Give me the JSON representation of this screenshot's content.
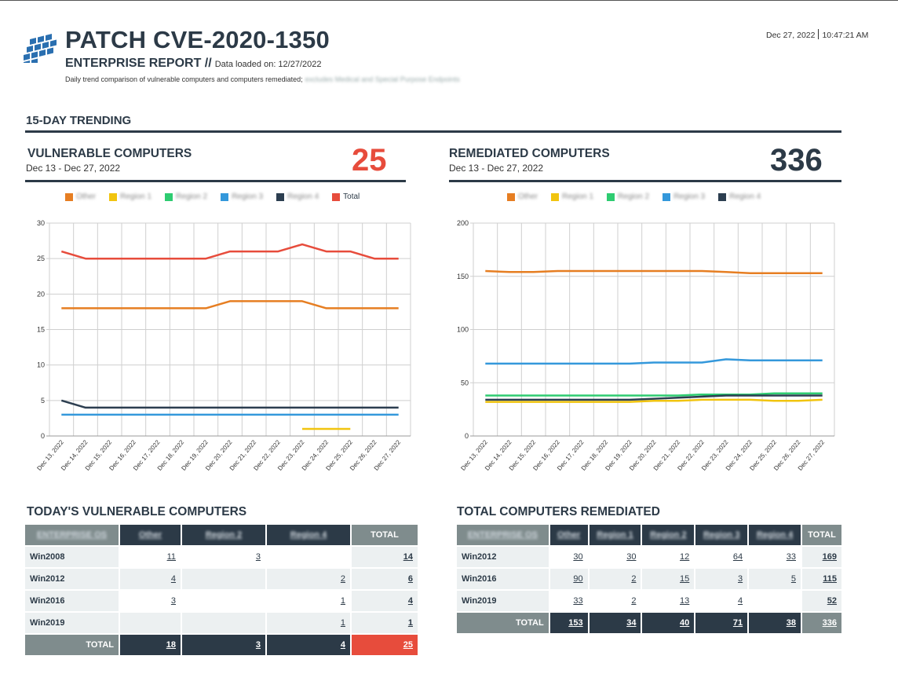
{
  "header": {
    "title": "PATCH CVE-2020-1350",
    "subtitle": "ENTERPRISE REPORT //",
    "data_loaded": "Data loaded on: 12/27/2022",
    "description": "Daily trend comparison of vulnerable computers and computers remediated;",
    "description_blurred": "excludes Medical and Special Purpose Endpoints",
    "date": "Dec 27, 2022",
    "time": "10:47:21 AM"
  },
  "section_title": "15-DAY TRENDING",
  "vulnerable_panel": {
    "title": "VULNERABLE COMPUTERS",
    "range": "Dec 13 - Dec 27, 2022",
    "count": "25"
  },
  "remediated_panel": {
    "title": "REMEDIATED COMPUTERS",
    "range": "Dec 13 - Dec 27, 2022",
    "count": "336"
  },
  "colors": {
    "other": "#e67e22",
    "region1": "#f1c40f",
    "region2": "#2ecc71",
    "region3": "#3498db",
    "region4": "#2c3e50",
    "total": "#e74c3c",
    "dark": "#2c3a47",
    "gray": "#7f8c8d"
  },
  "chart_data": [
    {
      "type": "line",
      "title": "VULNERABLE COMPUTERS",
      "categories": [
        "Dec 13, 2022",
        "Dec 14, 2022",
        "Dec 15, 2022",
        "Dec 16, 2022",
        "Dec 17, 2022",
        "Dec 18, 2022",
        "Dec 19, 2022",
        "Dec 20, 2022",
        "Dec 21, 2022",
        "Dec 22, 2022",
        "Dec 23, 2022",
        "Dec 24, 2022",
        "Dec 25, 2022",
        "Dec 26, 2022",
        "Dec 27, 2022"
      ],
      "ylim": [
        0,
        30
      ],
      "yticks": [
        0,
        5,
        10,
        15,
        20,
        25,
        30
      ],
      "legend": [
        "Other",
        "Region 1",
        "Region 2",
        "Region 3",
        "Region 4",
        "Total"
      ],
      "series": [
        {
          "name": "Other",
          "color": "#e67e22",
          "values": [
            18,
            18,
            18,
            18,
            18,
            18,
            18,
            19,
            19,
            19,
            19,
            18,
            18,
            18,
            18
          ]
        },
        {
          "name": "Region 1",
          "color": "#f1c40f",
          "values": [
            null,
            null,
            null,
            null,
            null,
            null,
            null,
            null,
            null,
            null,
            1,
            1,
            1,
            null,
            null
          ]
        },
        {
          "name": "Region 3",
          "color": "#3498db",
          "values": [
            3,
            3,
            3,
            3,
            3,
            3,
            3,
            3,
            3,
            3,
            3,
            3,
            3,
            3,
            3
          ]
        },
        {
          "name": "Region 4",
          "color": "#2c3e50",
          "values": [
            5,
            4,
            4,
            4,
            4,
            4,
            4,
            4,
            4,
            4,
            4,
            4,
            4,
            4,
            4
          ]
        },
        {
          "name": "Total",
          "color": "#e74c3c",
          "values": [
            26,
            25,
            25,
            25,
            25,
            25,
            25,
            26,
            26,
            26,
            27,
            26,
            26,
            25,
            25
          ]
        }
      ]
    },
    {
      "type": "line",
      "title": "REMEDIATED COMPUTERS",
      "categories": [
        "Dec 13, 2022",
        "Dec 14, 2022",
        "Dec 15, 2022",
        "Dec 16, 2022",
        "Dec 17, 2022",
        "Dec 18, 2022",
        "Dec 19, 2022",
        "Dec 20, 2022",
        "Dec 21, 2022",
        "Dec 22, 2022",
        "Dec 23, 2022",
        "Dec 24, 2022",
        "Dec 25, 2022",
        "Dec 26, 2022",
        "Dec 27, 2022"
      ],
      "ylim": [
        0,
        200
      ],
      "yticks": [
        0,
        50,
        100,
        150,
        200
      ],
      "legend": [
        "Other",
        "Region 1",
        "Region 2",
        "Region 3",
        "Region 4"
      ],
      "series": [
        {
          "name": "Other",
          "color": "#e67e22",
          "values": [
            155,
            154,
            154,
            155,
            155,
            155,
            155,
            155,
            155,
            155,
            154,
            153,
            153,
            153,
            153
          ]
        },
        {
          "name": "Region 1",
          "color": "#f1c40f",
          "values": [
            32,
            32,
            32,
            32,
            32,
            32,
            32,
            33,
            33,
            34,
            34,
            34,
            33,
            33,
            34
          ]
        },
        {
          "name": "Region 2",
          "color": "#2ecc71",
          "values": [
            38,
            38,
            38,
            38,
            38,
            38,
            38,
            38,
            38,
            39,
            39,
            39,
            40,
            40,
            40
          ]
        },
        {
          "name": "Region 3",
          "color": "#3498db",
          "values": [
            68,
            68,
            68,
            68,
            68,
            68,
            68,
            69,
            69,
            69,
            72,
            71,
            71,
            71,
            71
          ]
        },
        {
          "name": "Region 4",
          "color": "#2c3e50",
          "values": [
            34,
            34,
            34,
            34,
            34,
            34,
            34,
            35,
            36,
            37,
            38,
            38,
            38,
            38,
            38
          ]
        }
      ]
    }
  ],
  "vuln_table": {
    "title": "TODAY'S VULNERABLE COMPUTERS",
    "headers": [
      "ENTERPRISE OS",
      "Other",
      "Region 2",
      "Region 4",
      "TOTAL"
    ],
    "rows": [
      {
        "os": "Win2008",
        "c1": "11",
        "c2": "3",
        "c3": "",
        "total": "14"
      },
      {
        "os": "Win2012",
        "c1": "4",
        "c2": "",
        "c3": "2",
        "total": "6"
      },
      {
        "os": "Win2016",
        "c1": "3",
        "c2": "",
        "c3": "1",
        "total": "4"
      },
      {
        "os": "Win2019",
        "c1": "",
        "c2": "",
        "c3": "1",
        "total": "1"
      }
    ],
    "total_label": "TOTAL",
    "totals": {
      "c1": "18",
      "c2": "3",
      "c3": "4",
      "total": "25"
    }
  },
  "rem_table": {
    "title": "TOTAL COMPUTERS REMEDIATED",
    "headers": [
      "ENTERPRISE OS",
      "Other",
      "Region 1",
      "Region 2",
      "Region 3",
      "Region 4",
      "TOTAL"
    ],
    "rows": [
      {
        "os": "Win2012",
        "c1": "30",
        "c2": "30",
        "c3": "12",
        "c4": "64",
        "c5": "33",
        "total": "169"
      },
      {
        "os": "Win2016",
        "c1": "90",
        "c2": "2",
        "c3": "15",
        "c4": "3",
        "c5": "5",
        "total": "115"
      },
      {
        "os": "Win2019",
        "c1": "33",
        "c2": "2",
        "c3": "13",
        "c4": "4",
        "c5": "",
        "total": "52"
      }
    ],
    "total_label": "TOTAL",
    "totals": {
      "c1": "153",
      "c2": "34",
      "c3": "40",
      "c4": "71",
      "c5": "38",
      "total": "336"
    }
  }
}
